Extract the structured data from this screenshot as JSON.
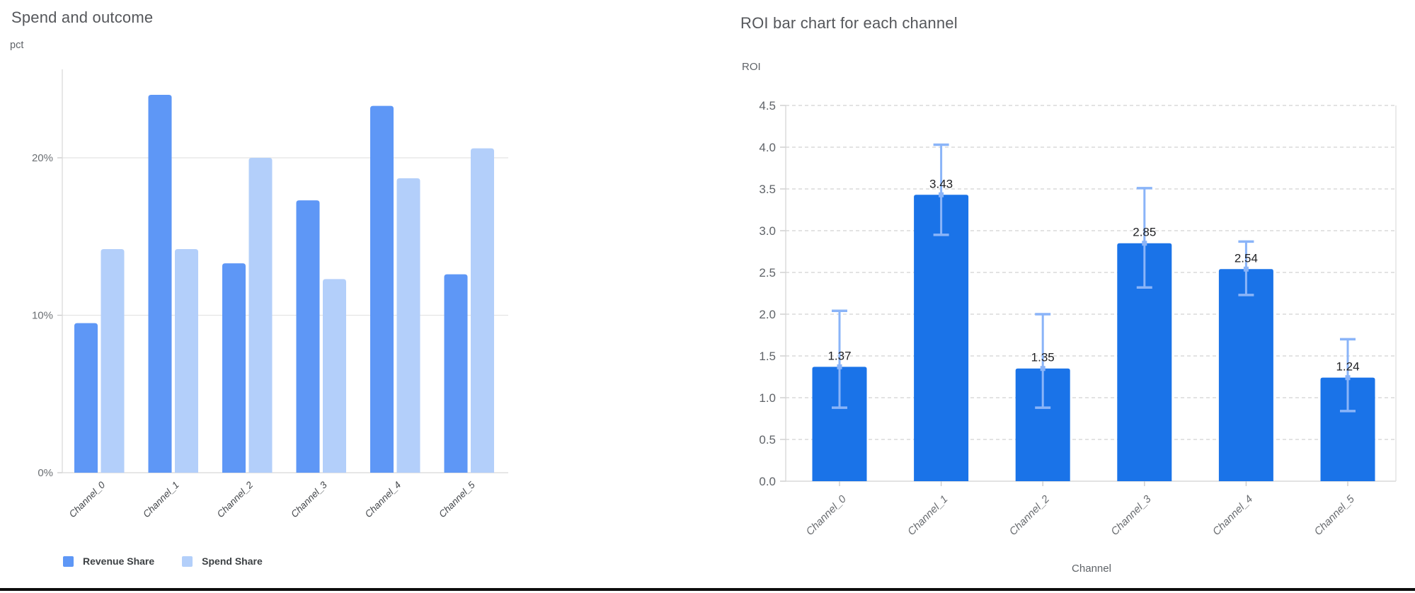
{
  "page": {
    "background": "#ffffff",
    "divider_color": "#0d0d0d"
  },
  "chart_data": [
    {
      "type": "bar",
      "title": "Spend and outcome",
      "xlabel": "",
      "ylabel": "pct",
      "categories": [
        "Channel_0",
        "Channel_1",
        "Channel_2",
        "Channel_3",
        "Channel_4",
        "Channel_5"
      ],
      "series": [
        {
          "name": "Revenue Share",
          "color": "#5e97f6",
          "values": [
            9.5,
            24.0,
            13.3,
            17.3,
            23.3,
            12.6
          ]
        },
        {
          "name": "Spend Share",
          "color": "#b3cffa",
          "values": [
            14.2,
            14.2,
            20.0,
            12.3,
            18.7,
            20.6
          ]
        }
      ],
      "y_ticks": [
        {
          "v": 0,
          "label": "0%"
        },
        {
          "v": 10,
          "label": "10%"
        },
        {
          "v": 20,
          "label": "20%"
        }
      ],
      "ylim": [
        0,
        25.5
      ],
      "grid": "solid",
      "legend_position": "bottom"
    },
    {
      "type": "bar",
      "title": "ROI bar chart for each channel",
      "xlabel": "Channel",
      "ylabel": "ROI",
      "categories": [
        "Channel_0",
        "Channel_1",
        "Channel_2",
        "Channel_3",
        "Channel_4",
        "Channel_5"
      ],
      "values": [
        1.37,
        3.43,
        1.35,
        2.85,
        2.54,
        1.24
      ],
      "value_labels": [
        "1.37",
        "3.43",
        "1.35",
        "2.85",
        "2.54",
        "1.24"
      ],
      "error_low": [
        0.88,
        2.95,
        0.88,
        2.32,
        2.23,
        0.84
      ],
      "error_high": [
        2.04,
        4.03,
        2.0,
        3.51,
        2.87,
        1.7
      ],
      "bar_color": "#1a73e8",
      "error_color": "#8ab4f8",
      "y_ticks": [
        {
          "v": 0.0,
          "label": "0.0"
        },
        {
          "v": 0.5,
          "label": "0.5"
        },
        {
          "v": 1.0,
          "label": "1.0"
        },
        {
          "v": 1.5,
          "label": "1.5"
        },
        {
          "v": 2.0,
          "label": "2.0"
        },
        {
          "v": 2.5,
          "label": "2.5"
        },
        {
          "v": 3.0,
          "label": "3.0"
        },
        {
          "v": 3.5,
          "label": "3.5"
        },
        {
          "v": 4.0,
          "label": "4.0"
        },
        {
          "v": 4.5,
          "label": "4.5"
        }
      ],
      "ylim": [
        0,
        4.5
      ],
      "grid": "dashed",
      "legend_position": "none"
    }
  ]
}
